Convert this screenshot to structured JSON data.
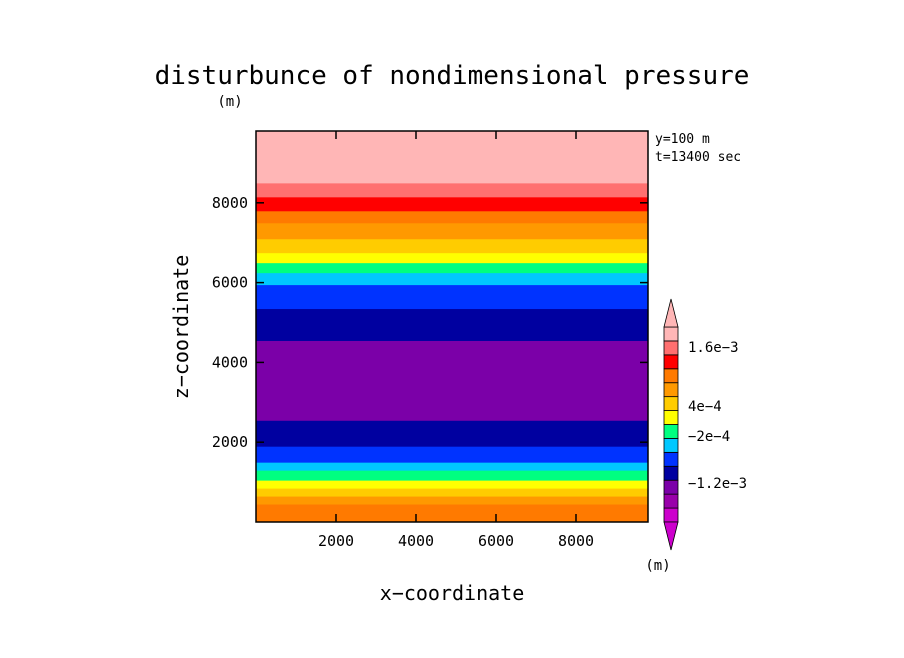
{
  "chart_data": {
    "type": "heatmap",
    "title": "disturbunce of nondimensional pressure",
    "ylabel_unit": "(m)",
    "xlabel": "x−coordinate",
    "ylabel": "z−coordinate",
    "xlim": [
      0,
      9800
    ],
    "ylim": [
      0,
      9800
    ],
    "x_ticks": [
      2000,
      4000,
      6000,
      8000
    ],
    "y_ticks": [
      2000,
      4000,
      6000,
      8000
    ],
    "annotations": [
      "y=100 m",
      "t=13400 sec"
    ],
    "colorbar": {
      "unit": "(m)",
      "labels": [
        "1.6e−3",
        "4e−4",
        "−2e−4",
        "−1.2e−3"
      ],
      "colors": [
        "#cc00cc",
        "#9900aa",
        "#7b00a8",
        "#0000a0",
        "#0033ff",
        "#00c8ff",
        "#00ff80",
        "#ffff00",
        "#ffcc00",
        "#ff9900",
        "#ff7a00",
        "#ff0000",
        "#ff7070",
        "#ffb6b6"
      ],
      "arrow_colors": [
        "#cc00cc",
        "#ffb6b6"
      ]
    },
    "bands": [
      {
        "z0": 0,
        "z1": 200,
        "color": "#ff7a00"
      },
      {
        "z0": 200,
        "z1": 450,
        "color": "#ff7a00"
      },
      {
        "z0": 450,
        "z1": 650,
        "color": "#ff9900"
      },
      {
        "z0": 650,
        "z1": 850,
        "color": "#ffcc00"
      },
      {
        "z0": 850,
        "z1": 1050,
        "color": "#ffff00"
      },
      {
        "z0": 1050,
        "z1": 1300,
        "color": "#00ff80"
      },
      {
        "z0": 1300,
        "z1": 1500,
        "color": "#00c8ff"
      },
      {
        "z0": 1500,
        "z1": 1900,
        "color": "#0033ff"
      },
      {
        "z0": 1900,
        "z1": 2550,
        "color": "#0000a0"
      },
      {
        "z0": 2550,
        "z1": 4550,
        "color": "#7b00a8"
      },
      {
        "z0": 4550,
        "z1": 5350,
        "color": "#0000a0"
      },
      {
        "z0": 5350,
        "z1": 5950,
        "color": "#0033ff"
      },
      {
        "z0": 5950,
        "z1": 6250,
        "color": "#00c8ff"
      },
      {
        "z0": 6250,
        "z1": 6500,
        "color": "#00ff80"
      },
      {
        "z0": 6500,
        "z1": 6750,
        "color": "#ffff00"
      },
      {
        "z0": 6750,
        "z1": 7100,
        "color": "#ffcc00"
      },
      {
        "z0": 7100,
        "z1": 7500,
        "color": "#ff9900"
      },
      {
        "z0": 7500,
        "z1": 7800,
        "color": "#ff7a00"
      },
      {
        "z0": 7800,
        "z1": 8150,
        "color": "#ff0000"
      },
      {
        "z0": 8150,
        "z1": 8500,
        "color": "#ff7070"
      },
      {
        "z0": 8500,
        "z1": 9800,
        "color": "#ffb6b6"
      }
    ]
  }
}
